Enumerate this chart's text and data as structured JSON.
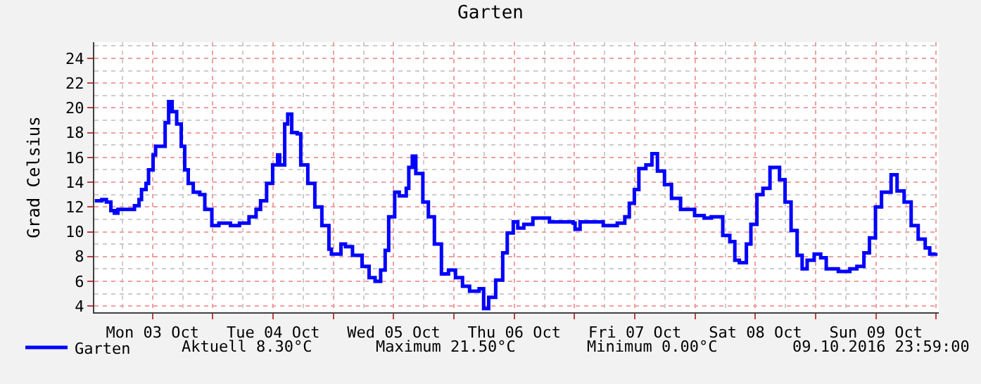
{
  "chart_data": {
    "type": "step",
    "title": "Garten",
    "ylabel": "Grad Celsius",
    "legend": "bottom",
    "grid": true,
    "marker": "none",
    "line_style": "solid",
    "xlim": [
      "2016-10-03T00:24",
      "2016-10-10T00:30"
    ],
    "ylim": [
      3.5,
      25.3
    ],
    "yticks": [
      4,
      6,
      8,
      10,
      12,
      14,
      16,
      18,
      20,
      22,
      24
    ],
    "xticks": [
      {
        "value": "2016-10-03T12:00",
        "label": "Mon 03 Oct"
      },
      {
        "value": "2016-10-04T00:00",
        "label": null
      },
      {
        "value": "2016-10-04T12:00",
        "label": "Tue 04 Oct"
      },
      {
        "value": "2016-10-05T00:00",
        "label": null
      },
      {
        "value": "2016-10-05T12:00",
        "label": "Wed 05 Oct"
      },
      {
        "value": "2016-10-06T00:00",
        "label": null
      },
      {
        "value": "2016-10-06T12:00",
        "label": "Thu 06 Oct"
      },
      {
        "value": "2016-10-07T00:00",
        "label": null
      },
      {
        "value": "2016-10-07T12:00",
        "label": "Fri 07 Oct"
      },
      {
        "value": "2016-10-08T00:00",
        "label": null
      },
      {
        "value": "2016-10-08T12:00",
        "label": "Sat 08 Oct"
      },
      {
        "value": "2016-10-09T00:00",
        "label": null
      },
      {
        "value": "2016-10-09T12:00",
        "label": "Sun 09 Oct"
      },
      {
        "value": "2016-10-10T00:00",
        "label": null
      }
    ],
    "annotations": [
      "Aktuell 8.30°C",
      "Maximum 21.50°C",
      "Minimum 0.00°C",
      "09.10.2016 23:59:00"
    ],
    "series": [
      {
        "name": "Garten",
        "color": "#0000ff",
        "x": [
          "2016-10-03T00:30",
          "2016-10-03T01:54",
          "2016-10-03T02:48",
          "2016-10-03T03:42",
          "2016-10-03T04:24",
          "2016-10-03T05:06",
          "2016-10-03T06:54",
          "2016-10-03T08:24",
          "2016-10-03T09:18",
          "2016-10-03T09:48",
          "2016-10-03T10:42",
          "2016-10-03T11:12",
          "2016-10-03T12:06",
          "2016-10-03T12:36",
          "2016-10-03T14:00",
          "2016-10-03T14:30",
          "2016-10-03T15:12",
          "2016-10-03T15:54",
          "2016-10-03T16:48",
          "2016-10-03T17:42",
          "2016-10-03T18:24",
          "2016-10-03T19:06",
          "2016-10-03T20:06",
          "2016-10-03T21:24",
          "2016-10-03T22:24",
          "2016-10-03T23:48",
          "2016-10-04T01:12",
          "2016-10-04T03:30",
          "2016-10-04T05:18",
          "2016-10-04T07:12",
          "2016-10-04T08:36",
          "2016-10-04T09:30",
          "2016-10-04T10:42",
          "2016-10-04T11:54",
          "2016-10-04T12:54",
          "2016-10-04T13:18",
          "2016-10-04T14:18",
          "2016-10-04T14:54",
          "2016-10-04T15:42",
          "2016-10-04T16:48",
          "2016-10-04T17:30",
          "2016-10-04T18:54",
          "2016-10-04T20:18",
          "2016-10-04T21:42",
          "2016-10-04T23:06",
          "2016-10-04T23:36",
          "2016-10-05T00:06",
          "2016-10-05T01:30",
          "2016-10-05T02:24",
          "2016-10-05T03:48",
          "2016-10-05T05:42",
          "2016-10-05T07:06",
          "2016-10-05T08:18",
          "2016-10-05T09:24",
          "2016-10-05T10:18",
          "2016-10-05T11:00",
          "2016-10-05T12:12",
          "2016-10-05T13:06",
          "2016-10-05T14:30",
          "2016-10-05T15:00",
          "2016-10-05T15:42",
          "2016-10-05T16:24",
          "2016-10-05T17:48",
          "2016-10-05T18:54",
          "2016-10-05T20:06",
          "2016-10-05T21:30",
          "2016-10-05T22:54",
          "2016-10-06T00:18",
          "2016-10-06T01:42",
          "2016-10-06T03:06",
          "2016-10-06T05:00",
          "2016-10-06T05:54",
          "2016-10-06T06:54",
          "2016-10-06T08:18",
          "2016-10-06T09:42",
          "2016-10-06T10:36",
          "2016-10-06T11:48",
          "2016-10-06T12:42",
          "2016-10-06T13:54",
          "2016-10-06T15:42",
          "2016-10-06T19:00",
          "2016-10-06T23:42",
          "2016-10-07T00:06",
          "2016-10-07T01:06",
          "2016-10-07T05:42",
          "2016-10-07T08:30",
          "2016-10-07T10:00",
          "2016-10-07T10:54",
          "2016-10-07T11:54",
          "2016-10-07T12:48",
          "2016-10-07T14:12",
          "2016-10-07T15:24",
          "2016-10-07T16:30",
          "2016-10-07T17:54",
          "2016-10-07T19:18",
          "2016-10-07T21:06",
          "2016-10-07T23:54",
          "2016-10-08T01:48",
          "2016-10-08T03:12",
          "2016-10-08T05:30",
          "2016-10-08T06:54",
          "2016-10-08T07:54",
          "2016-10-08T08:48",
          "2016-10-08T10:12",
          "2016-10-08T11:06",
          "2016-10-08T12:18",
          "2016-10-08T13:30",
          "2016-10-08T14:54",
          "2016-10-08T16:48",
          "2016-10-08T17:54",
          "2016-10-08T19:06",
          "2016-10-08T20:18",
          "2016-10-08T21:18",
          "2016-10-08T22:18",
          "2016-10-08T23:42",
          "2016-10-09T01:00",
          "2016-10-09T02:06",
          "2016-10-09T04:30",
          "2016-10-09T06:48",
          "2016-10-09T08:12",
          "2016-10-09T09:36",
          "2016-10-09T10:42",
          "2016-10-09T11:54",
          "2016-10-09T13:06",
          "2016-10-09T15:00",
          "2016-10-09T16:12",
          "2016-10-09T17:36",
          "2016-10-09T19:00",
          "2016-10-09T20:24",
          "2016-10-09T21:48",
          "2016-10-09T22:42",
          "2016-10-09T23:54"
        ],
        "values": [
          12.5,
          12.6,
          12.4,
          11.7,
          11.5,
          11.8,
          11.8,
          12.1,
          12.6,
          13.4,
          13.9,
          15.0,
          16.2,
          16.9,
          16.9,
          18.8,
          20.5,
          19.7,
          18.7,
          16.9,
          15.0,
          13.9,
          13.2,
          13.0,
          11.8,
          10.5,
          10.7,
          10.5,
          10.7,
          11.2,
          11.8,
          12.5,
          13.9,
          15.4,
          16.2,
          15.4,
          18.7,
          19.5,
          18.0,
          17.9,
          15.4,
          13.9,
          12.0,
          10.5,
          8.6,
          8.2,
          8.2,
          9.0,
          8.8,
          8.1,
          7.2,
          6.3,
          6.0,
          6.9,
          8.5,
          11.2,
          13.2,
          12.9,
          13.5,
          15.2,
          16.1,
          14.7,
          12.4,
          11.2,
          9.0,
          6.6,
          6.9,
          6.3,
          5.6,
          5.2,
          5.4,
          3.8,
          4.7,
          6.1,
          8.3,
          9.9,
          10.8,
          10.3,
          10.6,
          11.1,
          10.8,
          10.7,
          10.2,
          10.8,
          10.5,
          10.7,
          11.2,
          12.3,
          13.4,
          15.1,
          15.4,
          16.3,
          14.9,
          13.8,
          12.7,
          11.8,
          11.3,
          11.1,
          11.2,
          9.7,
          9.2,
          7.7,
          7.5,
          9.0,
          10.6,
          13.0,
          13.5,
          15.2,
          14.2,
          12.4,
          10.1,
          8.1,
          7.0,
          7.7,
          8.2,
          7.9,
          7.0,
          6.8,
          7.0,
          7.2,
          8.3,
          9.5,
          12.0,
          13.2,
          14.6,
          13.3,
          12.4,
          10.5,
          9.4,
          8.7,
          8.2,
          8.3
        ]
      }
    ]
  }
}
